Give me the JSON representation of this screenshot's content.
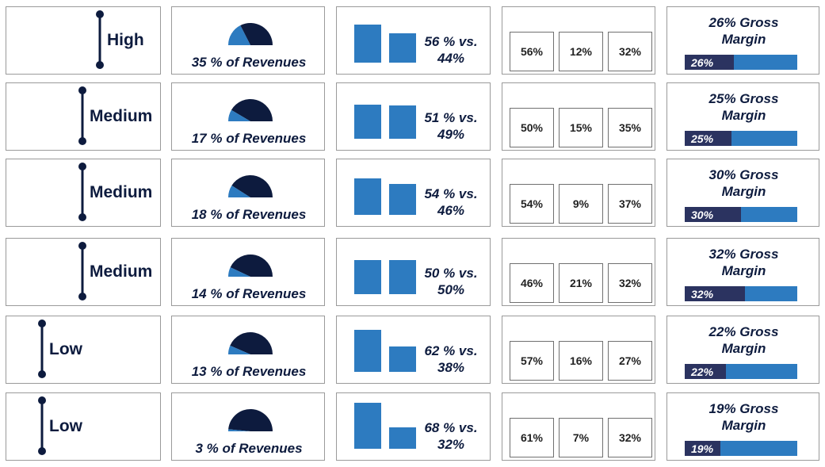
{
  "chart_data": {
    "type": "table",
    "series_names": [],
    "colors": {
      "dark": "#0d1b3e",
      "blue": "#2d7bc0",
      "bar_fill": "#2b3360"
    },
    "rows": [
      {
        "level": "High",
        "level_value": 3,
        "revenue_pct": 35,
        "revenue_text": "35 % of Revenues",
        "comparison": [
          56,
          44
        ],
        "comparison_text": [
          "56 % vs.",
          "44%"
        ],
        "split": [
          "56%",
          "12%",
          "32%"
        ],
        "margin_text": [
          "26% Gross",
          "Margin"
        ],
        "margin_pct": 26,
        "margin_bar_label": "26%"
      },
      {
        "level": "Medium",
        "level_value": 2,
        "revenue_pct": 17,
        "revenue_text": "17 % of Revenues",
        "comparison": [
          51,
          49
        ],
        "comparison_text": [
          "51 % vs.",
          "49%"
        ],
        "split": [
          "50%",
          "15%",
          "35%"
        ],
        "margin_text": [
          "25% Gross",
          "Margin"
        ],
        "margin_pct": 25,
        "margin_bar_label": "25%"
      },
      {
        "level": "Medium",
        "level_value": 2,
        "revenue_pct": 18,
        "revenue_text": "18 % of Revenues",
        "comparison": [
          54,
          46
        ],
        "comparison_text": [
          "54 % vs.",
          "46%"
        ],
        "split": [
          "54%",
          "9%",
          "37%"
        ],
        "margin_text": [
          "30% Gross",
          "Margin"
        ],
        "margin_pct": 30,
        "margin_bar_label": "30%"
      },
      {
        "level": "Medium",
        "level_value": 2,
        "revenue_pct": 14,
        "revenue_text": "14 % of Revenues",
        "comparison": [
          50,
          50
        ],
        "comparison_text": [
          "50 % vs.",
          "50%"
        ],
        "split": [
          "46%",
          "21%",
          "32%"
        ],
        "margin_text": [
          "32% Gross",
          "Margin"
        ],
        "margin_pct": 32,
        "margin_bar_label": "32%"
      },
      {
        "level": "Low",
        "level_value": 1,
        "revenue_pct": 13,
        "revenue_text": "13 % of Revenues",
        "comparison": [
          62,
          38
        ],
        "comparison_text": [
          "62 % vs.",
          "38%"
        ],
        "split": [
          "57%",
          "16%",
          "27%"
        ],
        "margin_text": [
          "22% Gross",
          "Margin"
        ],
        "margin_pct": 22,
        "margin_bar_label": "22%"
      },
      {
        "level": "Low",
        "level_value": 1,
        "revenue_pct": 3,
        "revenue_text": "3 % of Revenues",
        "comparison": [
          68,
          32
        ],
        "comparison_text": [
          "68 % vs.",
          "32%"
        ],
        "split": [
          "61%",
          "7%",
          "32%"
        ],
        "margin_text": [
          "19% Gross",
          "Margin"
        ],
        "margin_pct": 19,
        "margin_bar_label": "19%"
      }
    ]
  }
}
